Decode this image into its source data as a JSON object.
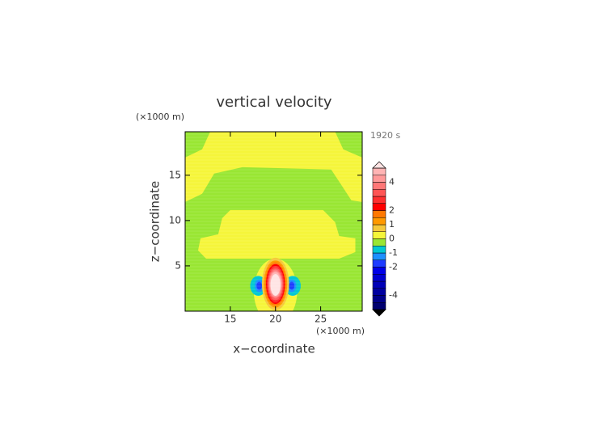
{
  "chart_data": {
    "type": "contour",
    "title": "vertical velocity",
    "x_label": "x−coordinate",
    "y_label": "z−coordinate",
    "x_unit": "(×1000 m)",
    "y_unit": "(×1000 m)",
    "time_label": "1920 s",
    "xlim": [
      10,
      29.6
    ],
    "ylim": [
      0,
      19.8
    ],
    "xticks": [
      15,
      20,
      25
    ],
    "yticks": [
      5,
      10,
      15
    ],
    "colorbar": {
      "levels": [
        -5,
        -4.5,
        -4,
        -3.5,
        -3,
        -2.5,
        -2,
        -1.5,
        -1,
        -0.5,
        0,
        0.5,
        1,
        1.5,
        2,
        2.5,
        3,
        3.5,
        4,
        4.5,
        5
      ],
      "colors": [
        "#000070",
        "#00008a",
        "#0000a0",
        "#0000b8",
        "#0000d0",
        "#0000e8",
        "#1e3cff",
        "#1e90ff",
        "#00c8d2",
        "#99e633",
        "#f5f53a",
        "#f5c83c",
        "#ff9900",
        "#ff7800",
        "#ff0000",
        "#ff3030",
        "#ff5555",
        "#ff7777",
        "#ff9999",
        "#ffb4b4"
      ],
      "under_color": "#000000",
      "over_color": "#ffe4e4",
      "ticks": [
        -4,
        -2,
        -1,
        0,
        1,
        2,
        4
      ]
    },
    "regions": [
      {
        "value": -0.25,
        "points": [
          [
            10,
            0
          ],
          [
            29.6,
            0
          ],
          [
            29.6,
            19.8
          ],
          [
            10,
            19.8
          ]
        ]
      },
      {
        "value": 0.25,
        "points": [
          [
            12.77,
            19.8
          ],
          [
            26.6,
            19.8
          ],
          [
            27.5,
            17.86
          ],
          [
            29.6,
            16.96
          ],
          [
            29.6,
            12.05
          ],
          [
            28.4,
            12.23
          ],
          [
            27.05,
            14.29
          ],
          [
            26.16,
            15.63
          ],
          [
            16.34,
            15.89
          ],
          [
            13.21,
            15.18
          ],
          [
            11.88,
            12.95
          ],
          [
            10,
            12.05
          ],
          [
            10,
            16.96
          ],
          [
            11.88,
            17.86
          ]
        ]
      },
      {
        "value": 0.25,
        "points": [
          [
            15,
            11.16
          ],
          [
            25.27,
            11.16
          ],
          [
            26.6,
            9.82
          ],
          [
            27.05,
            8.3
          ],
          [
            28.84,
            8.04
          ],
          [
            28.84,
            6.52
          ],
          [
            27.05,
            5.8
          ],
          [
            12.32,
            5.8
          ],
          [
            11.43,
            6.7
          ],
          [
            11.7,
            8.04
          ],
          [
            13.66,
            8.48
          ],
          [
            14.1,
            10.27
          ]
        ]
      },
      {
        "value": 0.25,
        "center": [
          20,
          2.2
        ],
        "radii": [
          2.4,
          3.6
        ]
      },
      {
        "value": -0.75,
        "center": [
          18.1,
          2.8
        ],
        "radii": [
          0.9,
          1.1
        ]
      },
      {
        "value": -0.75,
        "center": [
          21.9,
          2.8
        ],
        "radii": [
          0.9,
          1.1
        ]
      },
      {
        "value": -1.25,
        "center": [
          18.2,
          2.8
        ],
        "radii": [
          0.5,
          0.7
        ]
      },
      {
        "value": -1.25,
        "center": [
          21.8,
          2.8
        ],
        "radii": [
          0.5,
          0.7
        ]
      },
      {
        "value": -1.75,
        "center": [
          18.2,
          2.8
        ],
        "radii": [
          0.3,
          0.45
        ]
      },
      {
        "value": -1.75,
        "center": [
          21.8,
          2.8
        ],
        "radii": [
          0.3,
          0.45
        ]
      },
      {
        "value": 0.75,
        "center": [
          20,
          3
        ],
        "radii": [
          1.5,
          2.9
        ]
      },
      {
        "value": 1.25,
        "center": [
          20,
          3
        ],
        "radii": [
          1.3,
          2.6
        ]
      },
      {
        "value": 1.75,
        "center": [
          20,
          3
        ],
        "radii": [
          1.15,
          2.4
        ]
      },
      {
        "value": 2.25,
        "center": [
          20,
          3
        ],
        "radii": [
          1.05,
          2.2
        ]
      },
      {
        "value": 2.75,
        "center": [
          20,
          3
        ],
        "radii": [
          0.95,
          2.0
        ]
      },
      {
        "value": 3.25,
        "center": [
          20,
          3
        ],
        "radii": [
          0.85,
          1.8
        ]
      },
      {
        "value": 3.75,
        "center": [
          20,
          3
        ],
        "radii": [
          0.78,
          1.6
        ]
      },
      {
        "value": 4.25,
        "center": [
          20,
          3
        ],
        "radii": [
          0.7,
          1.45
        ]
      },
      {
        "value": 4.75,
        "center": [
          20,
          3
        ],
        "radii": [
          0.62,
          1.3
        ]
      },
      {
        "value": 5.25,
        "center": [
          20,
          2.9
        ],
        "radii": [
          0.55,
          1.2
        ]
      }
    ]
  }
}
